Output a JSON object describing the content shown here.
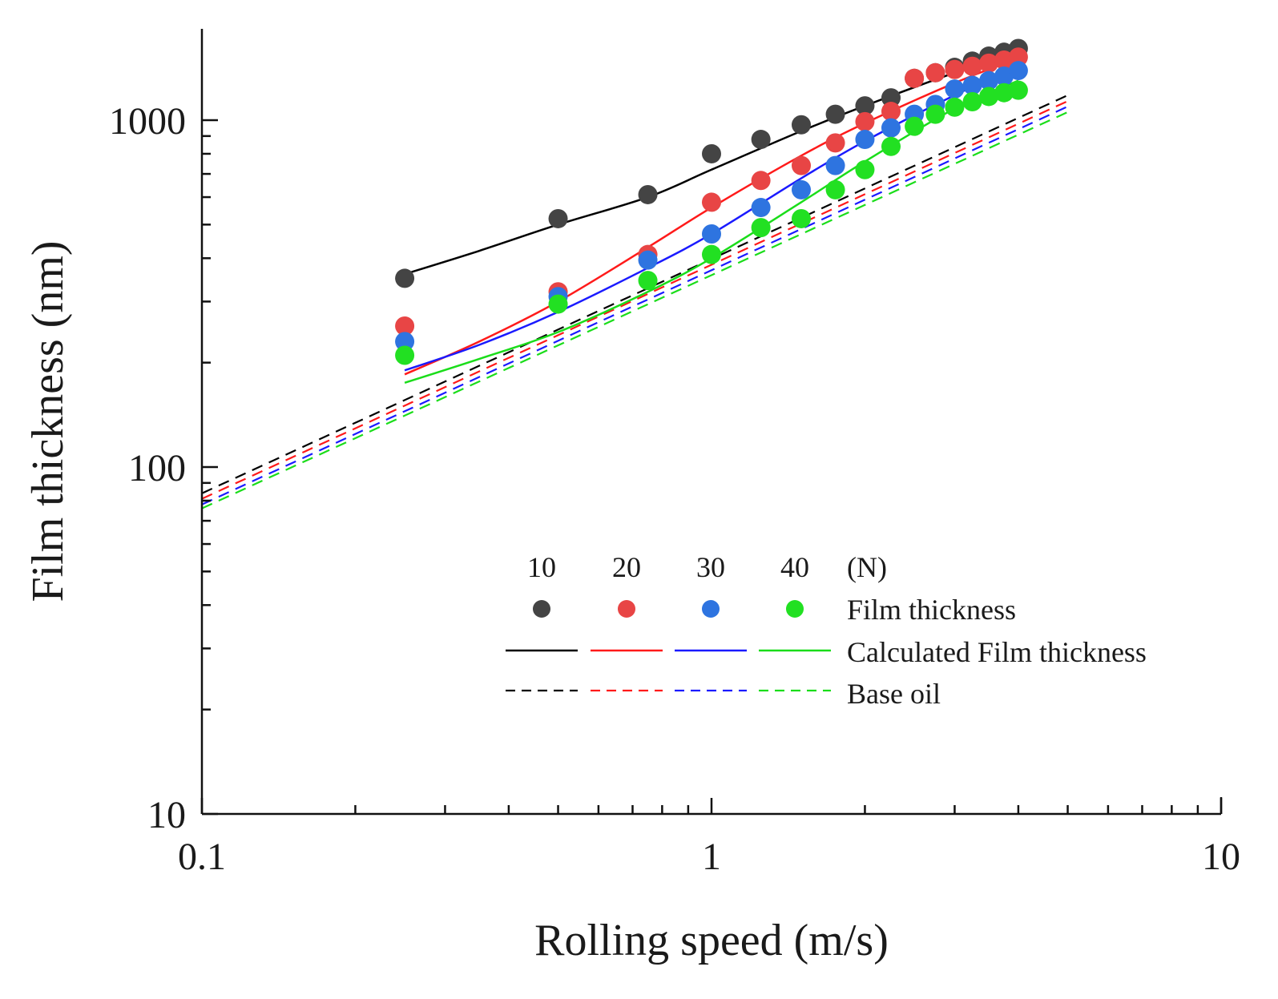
{
  "chart_data": {
    "type": "scatter",
    "title": "",
    "xlabel": "Rolling speed (m/s)",
    "ylabel": "Film thickness (nm)",
    "x_scale": "log",
    "y_scale": "log",
    "xlim": [
      0.1,
      10
    ],
    "ylim": [
      10,
      1800
    ],
    "x_ticks": [
      {
        "value": 0.1,
        "label": "0.1"
      },
      {
        "value": 1,
        "label": "1"
      },
      {
        "value": 10,
        "label": "10"
      }
    ],
    "y_ticks": [
      {
        "value": 10,
        "label": "10"
      },
      {
        "value": 100,
        "label": "100"
      },
      {
        "value": 1000,
        "label": "1000"
      }
    ],
    "grid": false,
    "legend": {
      "placement": "lower-right",
      "header_unit": "(N)",
      "loads": [
        "10",
        "20",
        "30",
        "40"
      ],
      "row_labels": [
        "Film thickness",
        "Calculated Film thickness",
        "Base oil"
      ]
    },
    "colors": {
      "10": "#444444",
      "20": "#e84545",
      "30": "#2e74e0",
      "40": "#22e022"
    },
    "line_colors": {
      "10": "#000000",
      "20": "#ff1a1a",
      "30": "#1a1aff",
      "40": "#1add1a"
    },
    "series": [
      {
        "load": "10",
        "measured_x": [
          0.25,
          0.5,
          0.75,
          1.0,
          1.25,
          1.5,
          1.75,
          2.0,
          2.25,
          2.5,
          2.75,
          3.0,
          3.25,
          3.5,
          3.75,
          4.0
        ],
        "measured_y": [
          350,
          520,
          610,
          800,
          880,
          970,
          1040,
          1100,
          1160,
          1320,
          1370,
          1420,
          1480,
          1530,
          1570,
          1610
        ],
        "calculated_x": [
          0.25,
          0.35,
          0.5,
          0.75,
          1.0,
          1.5,
          2.0,
          3.0,
          4.0
        ],
        "calculated_y": [
          360,
          420,
          500,
          600,
          720,
          930,
          1100,
          1370,
          1570
        ],
        "base_oil_x": [
          0.1,
          5.0
        ],
        "base_oil_y": [
          84,
          1180
        ]
      },
      {
        "load": "20",
        "measured_x": [
          0.25,
          0.5,
          0.75,
          1.0,
          1.25,
          1.5,
          1.75,
          2.0,
          2.25,
          2.5,
          2.75,
          3.0,
          3.25,
          3.5,
          3.75,
          4.0
        ],
        "measured_y": [
          255,
          320,
          410,
          580,
          670,
          740,
          860,
          990,
          1060,
          1320,
          1370,
          1400,
          1430,
          1460,
          1490,
          1520
        ],
        "calculated_x": [
          0.25,
          0.35,
          0.5,
          0.75,
          1.0,
          1.5,
          2.0,
          3.0,
          4.0
        ],
        "calculated_y": [
          185,
          230,
          300,
          430,
          560,
          790,
          980,
          1280,
          1510
        ],
        "base_oil_x": [
          0.1,
          5.0
        ],
        "base_oil_y": [
          81,
          1135
        ]
      },
      {
        "load": "30",
        "measured_x": [
          0.25,
          0.5,
          0.75,
          1.0,
          1.25,
          1.5,
          1.75,
          2.0,
          2.25,
          2.5,
          2.75,
          3.0,
          3.25,
          3.5,
          3.75,
          4.0
        ],
        "measured_y": [
          230,
          310,
          395,
          470,
          560,
          630,
          740,
          880,
          950,
          1040,
          1110,
          1230,
          1260,
          1300,
          1340,
          1390
        ],
        "calculated_x": [
          0.25,
          0.35,
          0.5,
          0.75,
          1.0,
          1.5,
          2.0,
          3.0,
          4.0
        ],
        "calculated_y": [
          190,
          225,
          280,
          375,
          470,
          680,
          870,
          1180,
          1430
        ],
        "base_oil_x": [
          0.1,
          5.0
        ],
        "base_oil_y": [
          78,
          1095
        ]
      },
      {
        "load": "40",
        "measured_x": [
          0.25,
          0.5,
          0.75,
          1.0,
          1.25,
          1.5,
          1.75,
          2.0,
          2.25,
          2.5,
          2.75,
          3.0,
          3.25,
          3.5,
          3.75,
          4.0
        ],
        "measured_y": [
          210,
          295,
          345,
          410,
          490,
          520,
          630,
          720,
          840,
          960,
          1040,
          1090,
          1130,
          1170,
          1200,
          1220
        ],
        "calculated_x": [
          0.25,
          0.35,
          0.5,
          0.75,
          1.0,
          1.5,
          2.0,
          3.0,
          4.0
        ],
        "calculated_y": [
          175,
          205,
          245,
          320,
          400,
          580,
          760,
          1080,
          1300
        ],
        "base_oil_x": [
          0.1,
          5.0
        ],
        "base_oil_y": [
          76,
          1055
        ]
      }
    ]
  }
}
